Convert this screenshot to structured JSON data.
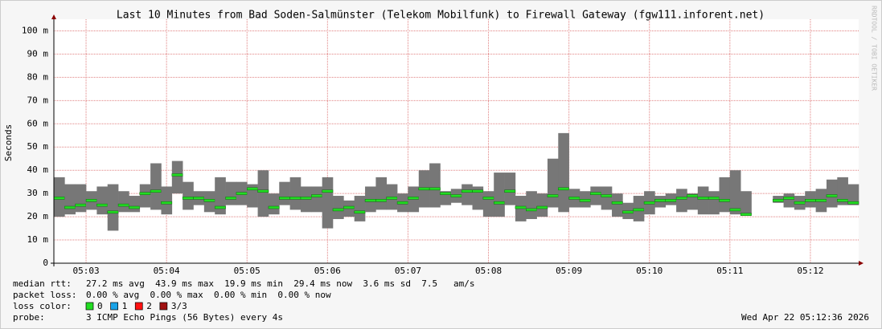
{
  "chart_data": {
    "type": "smoke",
    "title": "Last 10 Minutes from Bad Soden-Salmünster (Telekom Mobilfunk) to Firewall Gateway (fgw111.inforent.net)",
    "ylabel": "Seconds",
    "watermark": "RRDTOOL / TOBI OETIKER",
    "x": [
      "05:02:36",
      "05:02:44",
      "05:02:52",
      "05:03:00",
      "05:03:08",
      "05:03:16",
      "05:03:24",
      "05:03:32",
      "05:03:40",
      "05:03:48",
      "05:03:56",
      "05:04:04",
      "05:04:12",
      "05:04:20",
      "05:04:28",
      "05:04:36",
      "05:04:44",
      "05:04:52",
      "05:05:00",
      "05:05:08",
      "05:05:16",
      "05:05:24",
      "05:05:32",
      "05:05:40",
      "05:05:48",
      "05:05:56",
      "05:06:04",
      "05:06:12",
      "05:06:20",
      "05:06:28",
      "05:06:36",
      "05:06:44",
      "05:06:52",
      "05:07:00",
      "05:07:08",
      "05:07:16",
      "05:07:24",
      "05:07:32",
      "05:07:40",
      "05:07:48",
      "05:07:56",
      "05:08:04",
      "05:08:12",
      "05:08:20",
      "05:08:28",
      "05:08:36",
      "05:08:44",
      "05:08:52",
      "05:09:00",
      "05:09:08",
      "05:09:16",
      "05:09:24",
      "05:09:32",
      "05:09:40",
      "05:09:48",
      "05:09:56",
      "05:10:04",
      "05:10:12",
      "05:10:20",
      "05:10:28",
      "05:10:36",
      "05:10:44",
      "05:10:52",
      "05:11:00",
      "05:11:08",
      "05:11:16",
      "05:11:24",
      "05:11:32",
      "05:11:40",
      "05:11:48",
      "05:11:56",
      "05:12:04",
      "05:12:12",
      "05:12:20",
      "05:12:28"
    ],
    "xlim": [
      "05:02:36",
      "05:12:36"
    ],
    "xticks": [
      "05:03",
      "05:04",
      "05:05",
      "05:06",
      "05:07",
      "05:08",
      "05:09",
      "05:10",
      "05:11",
      "05:12"
    ],
    "ylim": [
      0,
      105
    ],
    "yticks": [
      0,
      {
        "value": 10,
        "label": "10 m"
      },
      {
        "value": 20,
        "label": "20 m"
      },
      {
        "value": 30,
        "label": "30 m"
      },
      {
        "value": 40,
        "label": "40 m"
      },
      {
        "value": 50,
        "label": "50 m"
      },
      {
        "value": 60,
        "label": "60 m"
      },
      {
        "value": 70,
        "label": "70 m"
      },
      {
        "value": 80,
        "label": "80 m"
      },
      {
        "value": 90,
        "label": "90 m"
      },
      {
        "value": 100,
        "label": "100 m"
      }
    ],
    "grid": true,
    "ranges": {
      "color": "#777777",
      "low": [
        20,
        21,
        22,
        23,
        21,
        14,
        22,
        22,
        24,
        23,
        21,
        30,
        23,
        25,
        22,
        21,
        25,
        25,
        24,
        20,
        21,
        25,
        23,
        22,
        22,
        15,
        19,
        20,
        18,
        22,
        23,
        23,
        22,
        22,
        24,
        24,
        25,
        26,
        25,
        23,
        20,
        20,
        25,
        18,
        19,
        20,
        24,
        22,
        24,
        24,
        25,
        23,
        20,
        19,
        18,
        21,
        24,
        25,
        22,
        23,
        21,
        21,
        22,
        21,
        21,
        null,
        null,
        26,
        24,
        23,
        24,
        22,
        24,
        25,
        25
      ],
      "high": [
        37,
        34,
        34,
        31,
        33,
        34,
        31,
        29,
        34,
        43,
        33,
        44,
        35,
        31,
        31,
        37,
        35,
        35,
        34,
        40,
        30,
        35,
        37,
        33,
        33,
        37,
        29,
        27,
        29,
        33,
        37,
        34,
        30,
        33,
        40,
        43,
        31,
        32,
        34,
        33,
        31,
        39,
        39,
        29,
        31,
        30,
        45,
        56,
        32,
        31,
        33,
        33,
        30,
        26,
        29,
        31,
        29,
        30,
        32,
        30,
        33,
        31,
        37,
        40,
        31,
        null,
        null,
        29,
        30,
        29,
        31,
        32,
        36,
        37,
        34
      ]
    },
    "series": [
      {
        "name": "median rtt:",
        "color": "#22dd22",
        "values": [
          28,
          24,
          25,
          27,
          25,
          22,
          25,
          24,
          30,
          31,
          26,
          38,
          28,
          28,
          27,
          24,
          28,
          30,
          32,
          31,
          24,
          28,
          28,
          28,
          29,
          31,
          23,
          24,
          22,
          27,
          27,
          28,
          26,
          28,
          32,
          32,
          30,
          29,
          31,
          31,
          28,
          26,
          31,
          24,
          23,
          24,
          29,
          32,
          28,
          27,
          30,
          29,
          26,
          22,
          23,
          26,
          27,
          27,
          28,
          29,
          28,
          28,
          27,
          23,
          21,
          null,
          null,
          27,
          28,
          26,
          27,
          27,
          29,
          27,
          26
        ]
      }
    ],
    "stats": [
      {
        "label": "median rtt:",
        "text": "27.2 ms avg  43.9 ms max  19.9 ms min  29.4 ms now  3.6 ms sd  7.5   am/s"
      },
      {
        "label": "packet loss:",
        "text": "0.00 % avg  0.00 % max  0.00 % min  0.00 % now"
      }
    ],
    "loss_legend": {
      "label": "loss color:",
      "items": [
        {
          "label": "0",
          "color": "#22dd22"
        },
        {
          "label": "1",
          "color": "#19a3e8"
        },
        {
          "label": "2",
          "color": "#ff1010"
        },
        {
          "label": "3/3",
          "color": "#a01010"
        }
      ]
    },
    "probe": {
      "label": "probe:",
      "text": "3 ICMP Echo Pings (56 Bytes) every 4s"
    },
    "timestamp": "Wed Apr 22 05:12:36 2026"
  }
}
